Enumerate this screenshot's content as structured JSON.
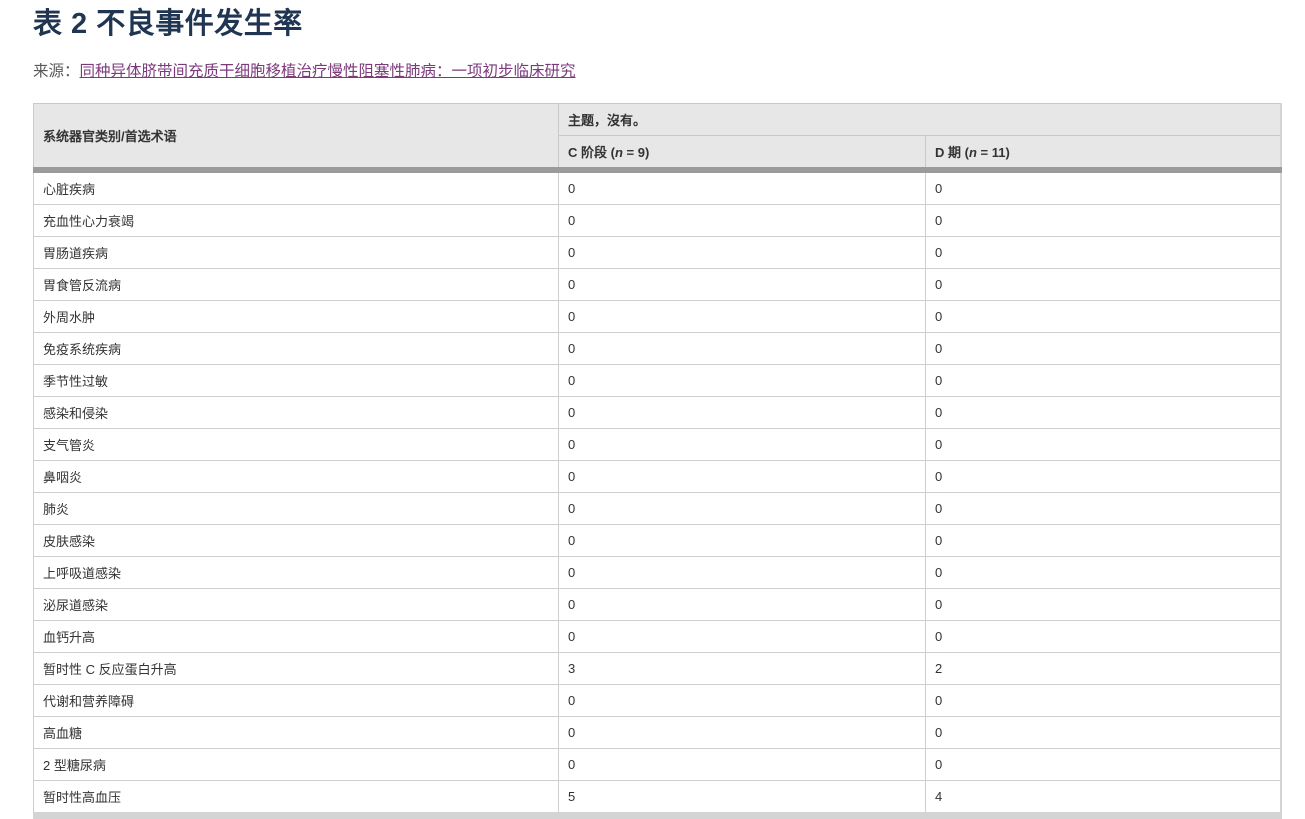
{
  "page": {
    "title": "表 2 不良事件发生率"
  },
  "source": {
    "label": "来源：",
    "link_text": "同种异体脐带间充质干细胞移植治疗慢性阻塞性肺病：一项初步临床研究"
  },
  "table": {
    "row_header": "系统器官类别/首选术语",
    "group_header": "主题，沒有。",
    "columns": [
      {
        "pre": "C 阶段 (",
        "nvar": "n",
        "post": " = 9)"
      },
      {
        "pre": "D 期 (",
        "nvar": "n",
        "post": " = 11)"
      }
    ],
    "rows": [
      {
        "label": "心脏疾病",
        "c": "0",
        "d": "0"
      },
      {
        "label": "充血性心力衰竭",
        "c": "0",
        "d": "0"
      },
      {
        "label": "胃肠道疾病",
        "c": "0",
        "d": "0"
      },
      {
        "label": "胃食管反流病",
        "c": "0",
        "d": "0"
      },
      {
        "label": "外周水肿",
        "c": "0",
        "d": "0"
      },
      {
        "label": "免疫系统疾病",
        "c": "0",
        "d": "0"
      },
      {
        "label": "季节性过敏",
        "c": "0",
        "d": "0"
      },
      {
        "label": "感染和侵染",
        "c": "0",
        "d": "0"
      },
      {
        "label": "支气管炎",
        "c": "0",
        "d": "0"
      },
      {
        "label": "鼻咽炎",
        "c": "0",
        "d": "0"
      },
      {
        "label": "肺炎",
        "c": "0",
        "d": "0"
      },
      {
        "label": "皮肤感染",
        "c": "0",
        "d": "0"
      },
      {
        "label": "上呼吸道感染",
        "c": "0",
        "d": "0"
      },
      {
        "label": "泌尿道感染",
        "c": "0",
        "d": "0"
      },
      {
        "label": "血钙升高",
        "c": "0",
        "d": "0"
      },
      {
        "label": "暂时性 C 反应蛋白升高",
        "c": "3",
        "d": "2"
      },
      {
        "label": "代谢和营养障碍",
        "c": "0",
        "d": "0"
      },
      {
        "label": "高血糖",
        "c": "0",
        "d": "0"
      },
      {
        "label": "2 型糖尿病",
        "c": "0",
        "d": "0"
      },
      {
        "label": "暂时性高血压",
        "c": "5",
        "d": "4"
      }
    ]
  },
  "colors": {
    "title_text": "#1F3552",
    "link": "#7C3A7C",
    "header_bg": "#E7E7E7",
    "header_separator": "#9B9B9B",
    "bottom_bar": "#D4D4D4",
    "border": "#C9C9C9",
    "row_border": "#CFCFCF",
    "body_text": "#333333",
    "source_label": "#5A5A5A"
  }
}
